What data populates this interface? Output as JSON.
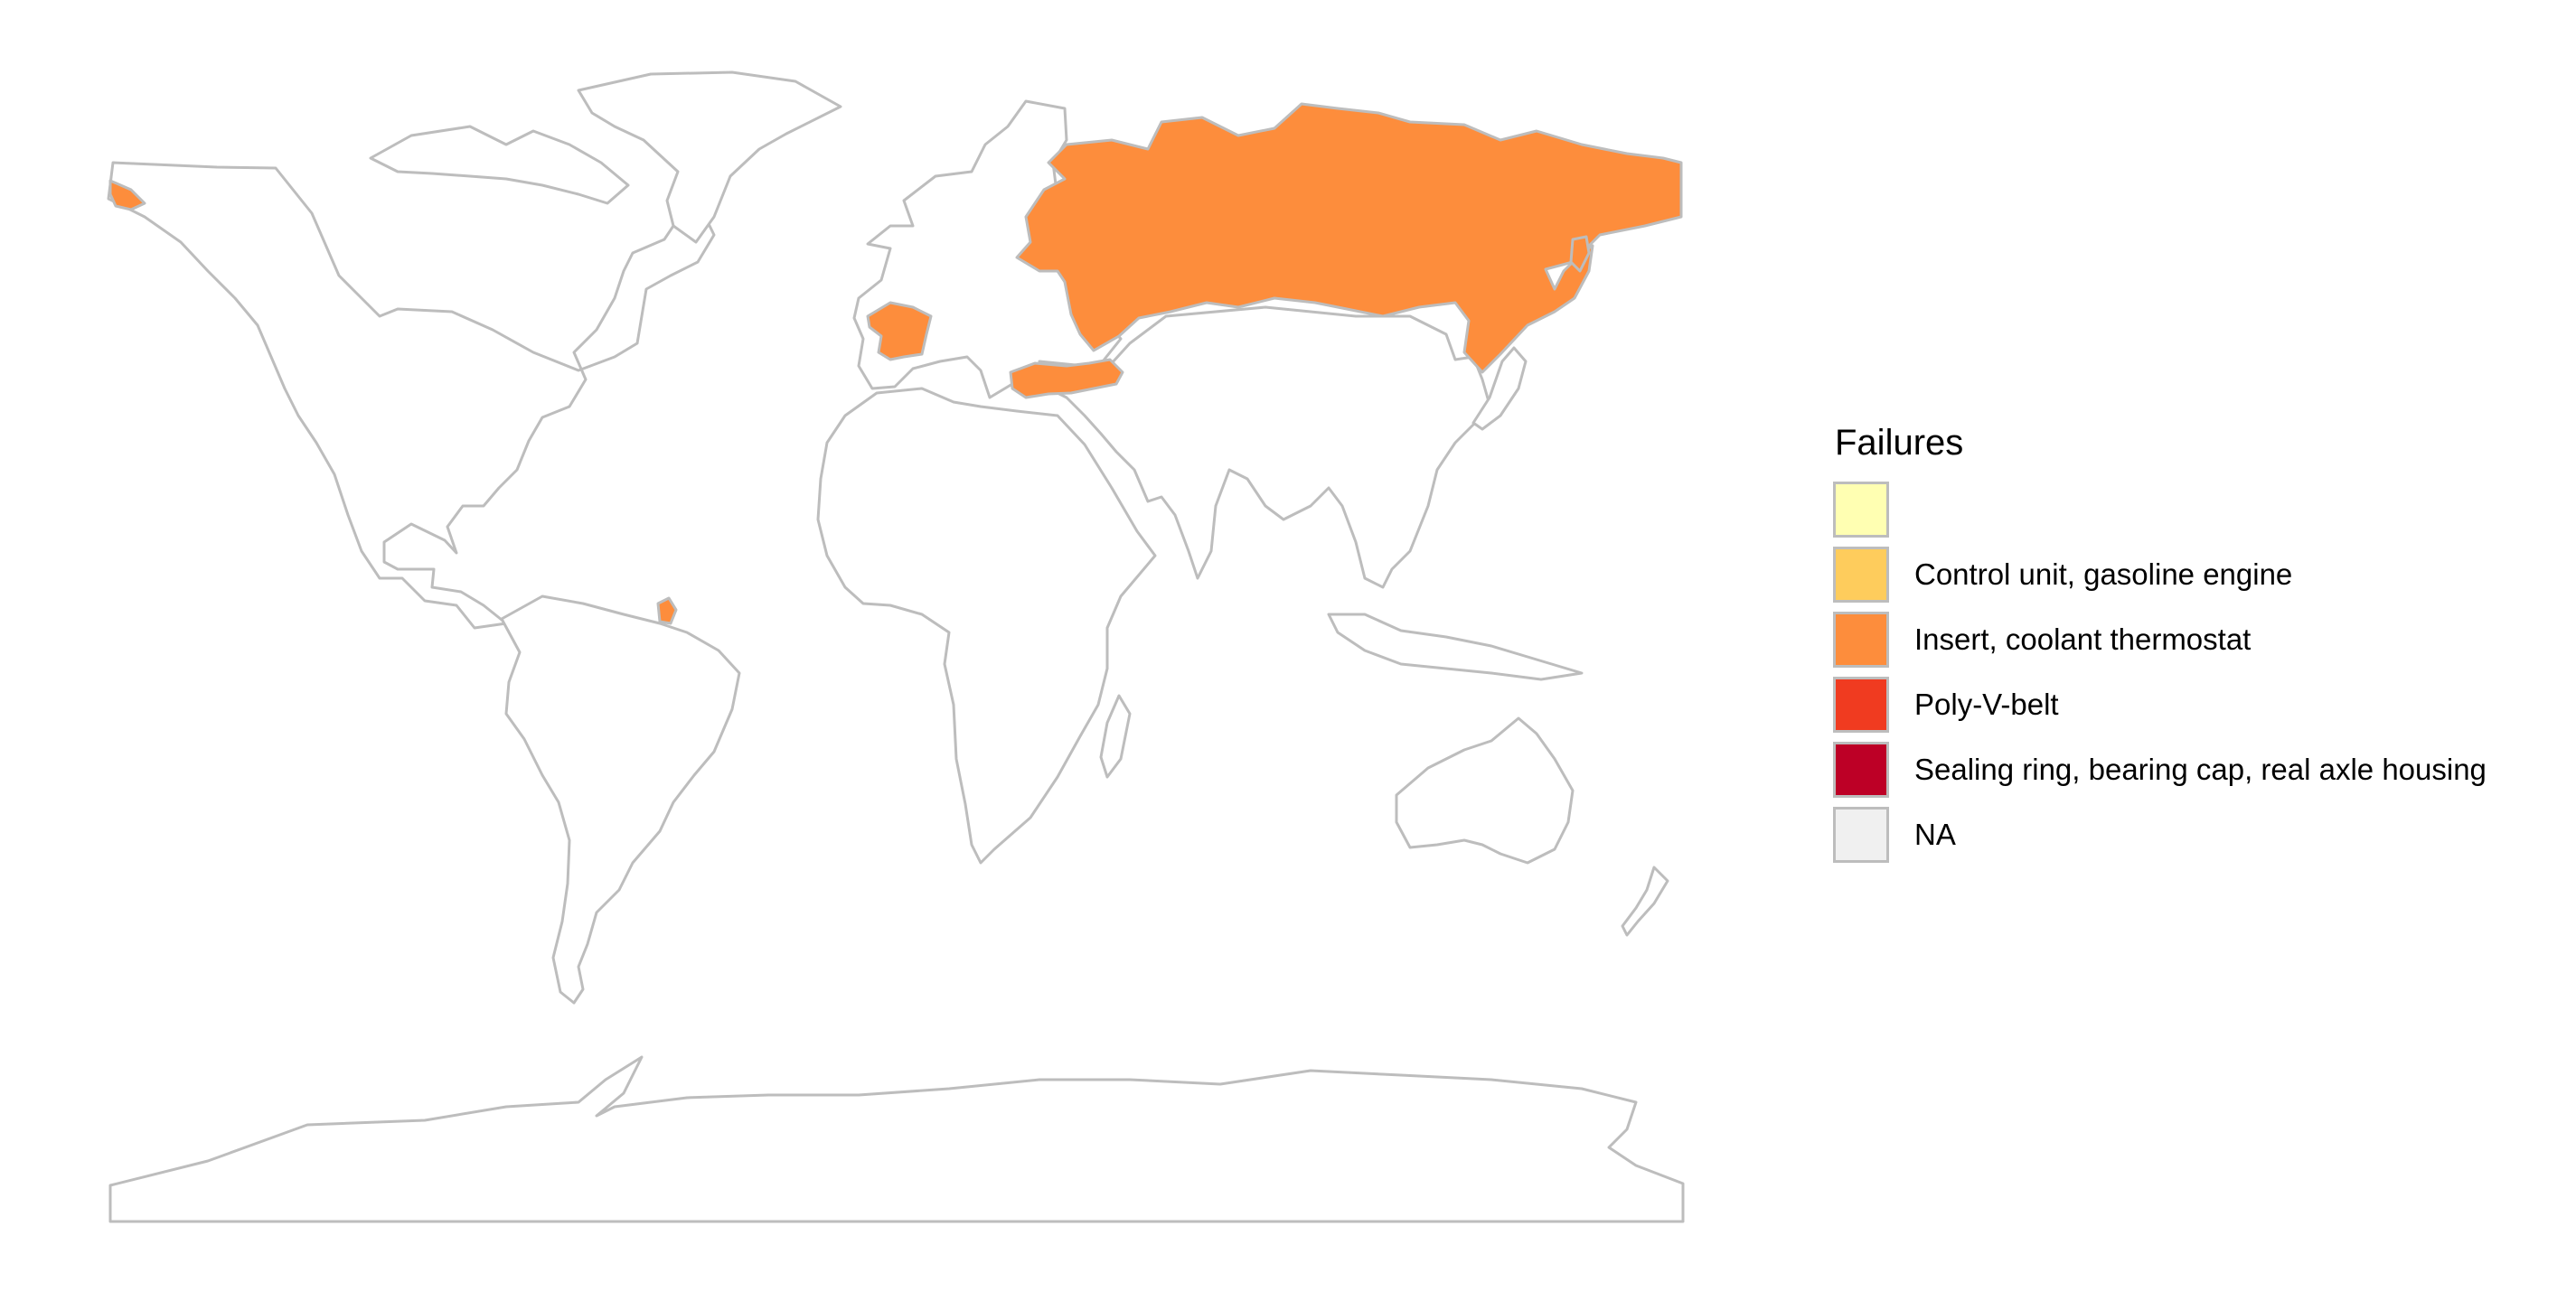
{
  "legend": {
    "title": "Failures",
    "items": [
      {
        "label": "",
        "color": "#ffffb2"
      },
      {
        "label": "Control unit, gasoline engine",
        "color": "#fecc5c"
      },
      {
        "label": "Insert, coolant thermostat",
        "color": "#fd8d3c"
      },
      {
        "label": "Poly-V-belt",
        "color": "#f03b20"
      },
      {
        "label": "Sealing ring, bearing cap, real axle housing",
        "color": "#bd0026"
      },
      {
        "label": "NA",
        "color": "#f0f0f0"
      }
    ]
  },
  "map": {
    "fill_default": "#ffffff",
    "border_color": "#bdbdbd",
    "highlighted_countries": [
      {
        "name": "Russia",
        "failure": "Insert, coolant thermostat"
      },
      {
        "name": "France",
        "failure": "Insert, coolant thermostat"
      },
      {
        "name": "Turkey",
        "failure": "Insert, coolant thermostat"
      },
      {
        "name": "French Guiana",
        "failure": "Insert, coolant thermostat"
      }
    ]
  }
}
